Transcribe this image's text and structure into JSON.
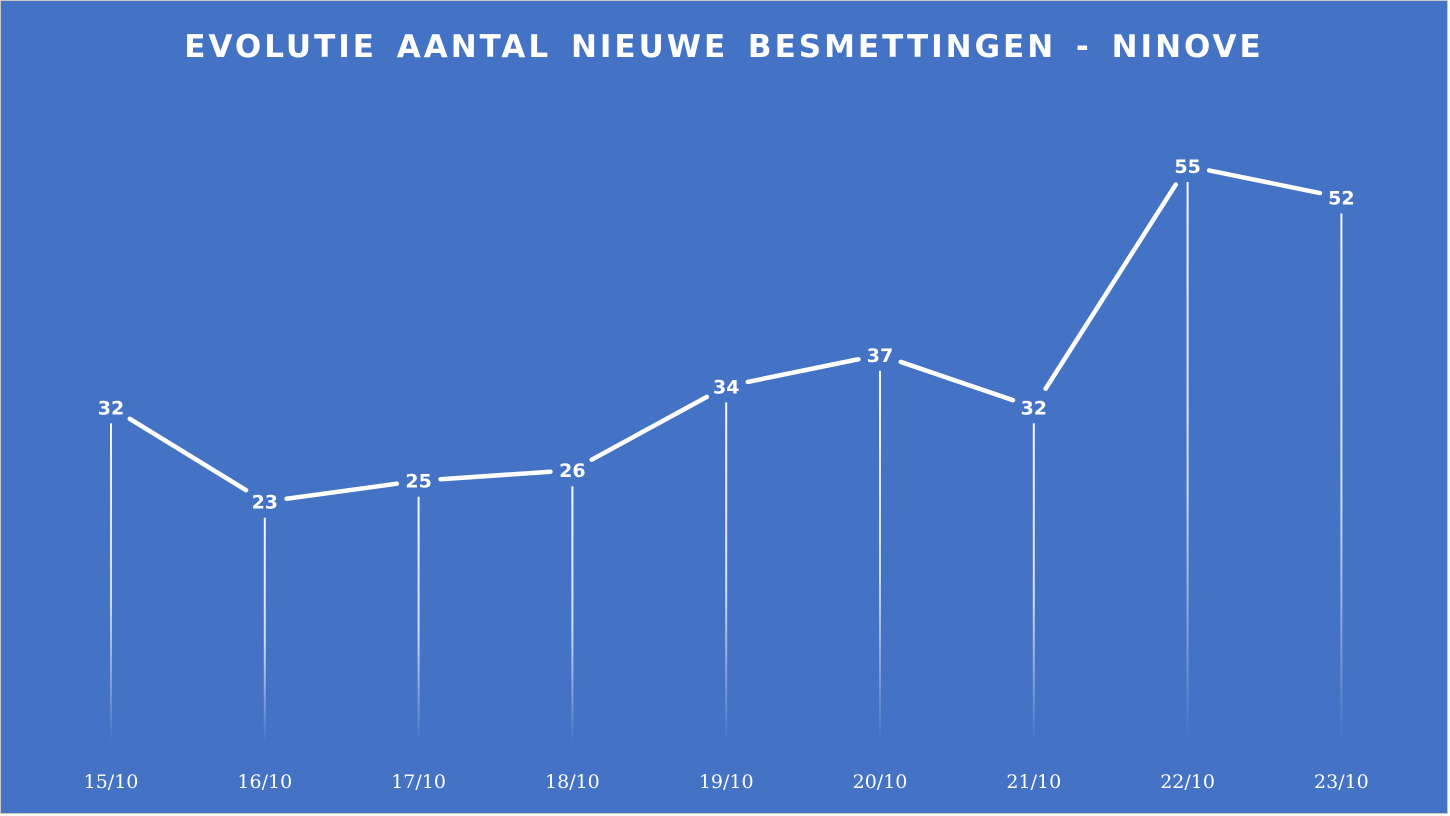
{
  "chart_data": {
    "type": "line",
    "title": "EVOLUTIE AANTAL NIEUWE BESMETTINGEN - NINOVE",
    "categories": [
      "15/10",
      "16/10",
      "17/10",
      "18/10",
      "19/10",
      "20/10",
      "21/10",
      "22/10",
      "23/10"
    ],
    "series": [
      {
        "values": [
          32,
          23,
          25,
          26,
          34,
          37,
          32,
          55,
          52
        ]
      }
    ],
    "data_labels": true,
    "drop_lines": true,
    "grid": false,
    "legend": "none",
    "ylim": [
      0,
      60
    ],
    "colors": {
      "background": "#4472c4",
      "line": "#ffffff",
      "text": "#ffffff"
    }
  }
}
